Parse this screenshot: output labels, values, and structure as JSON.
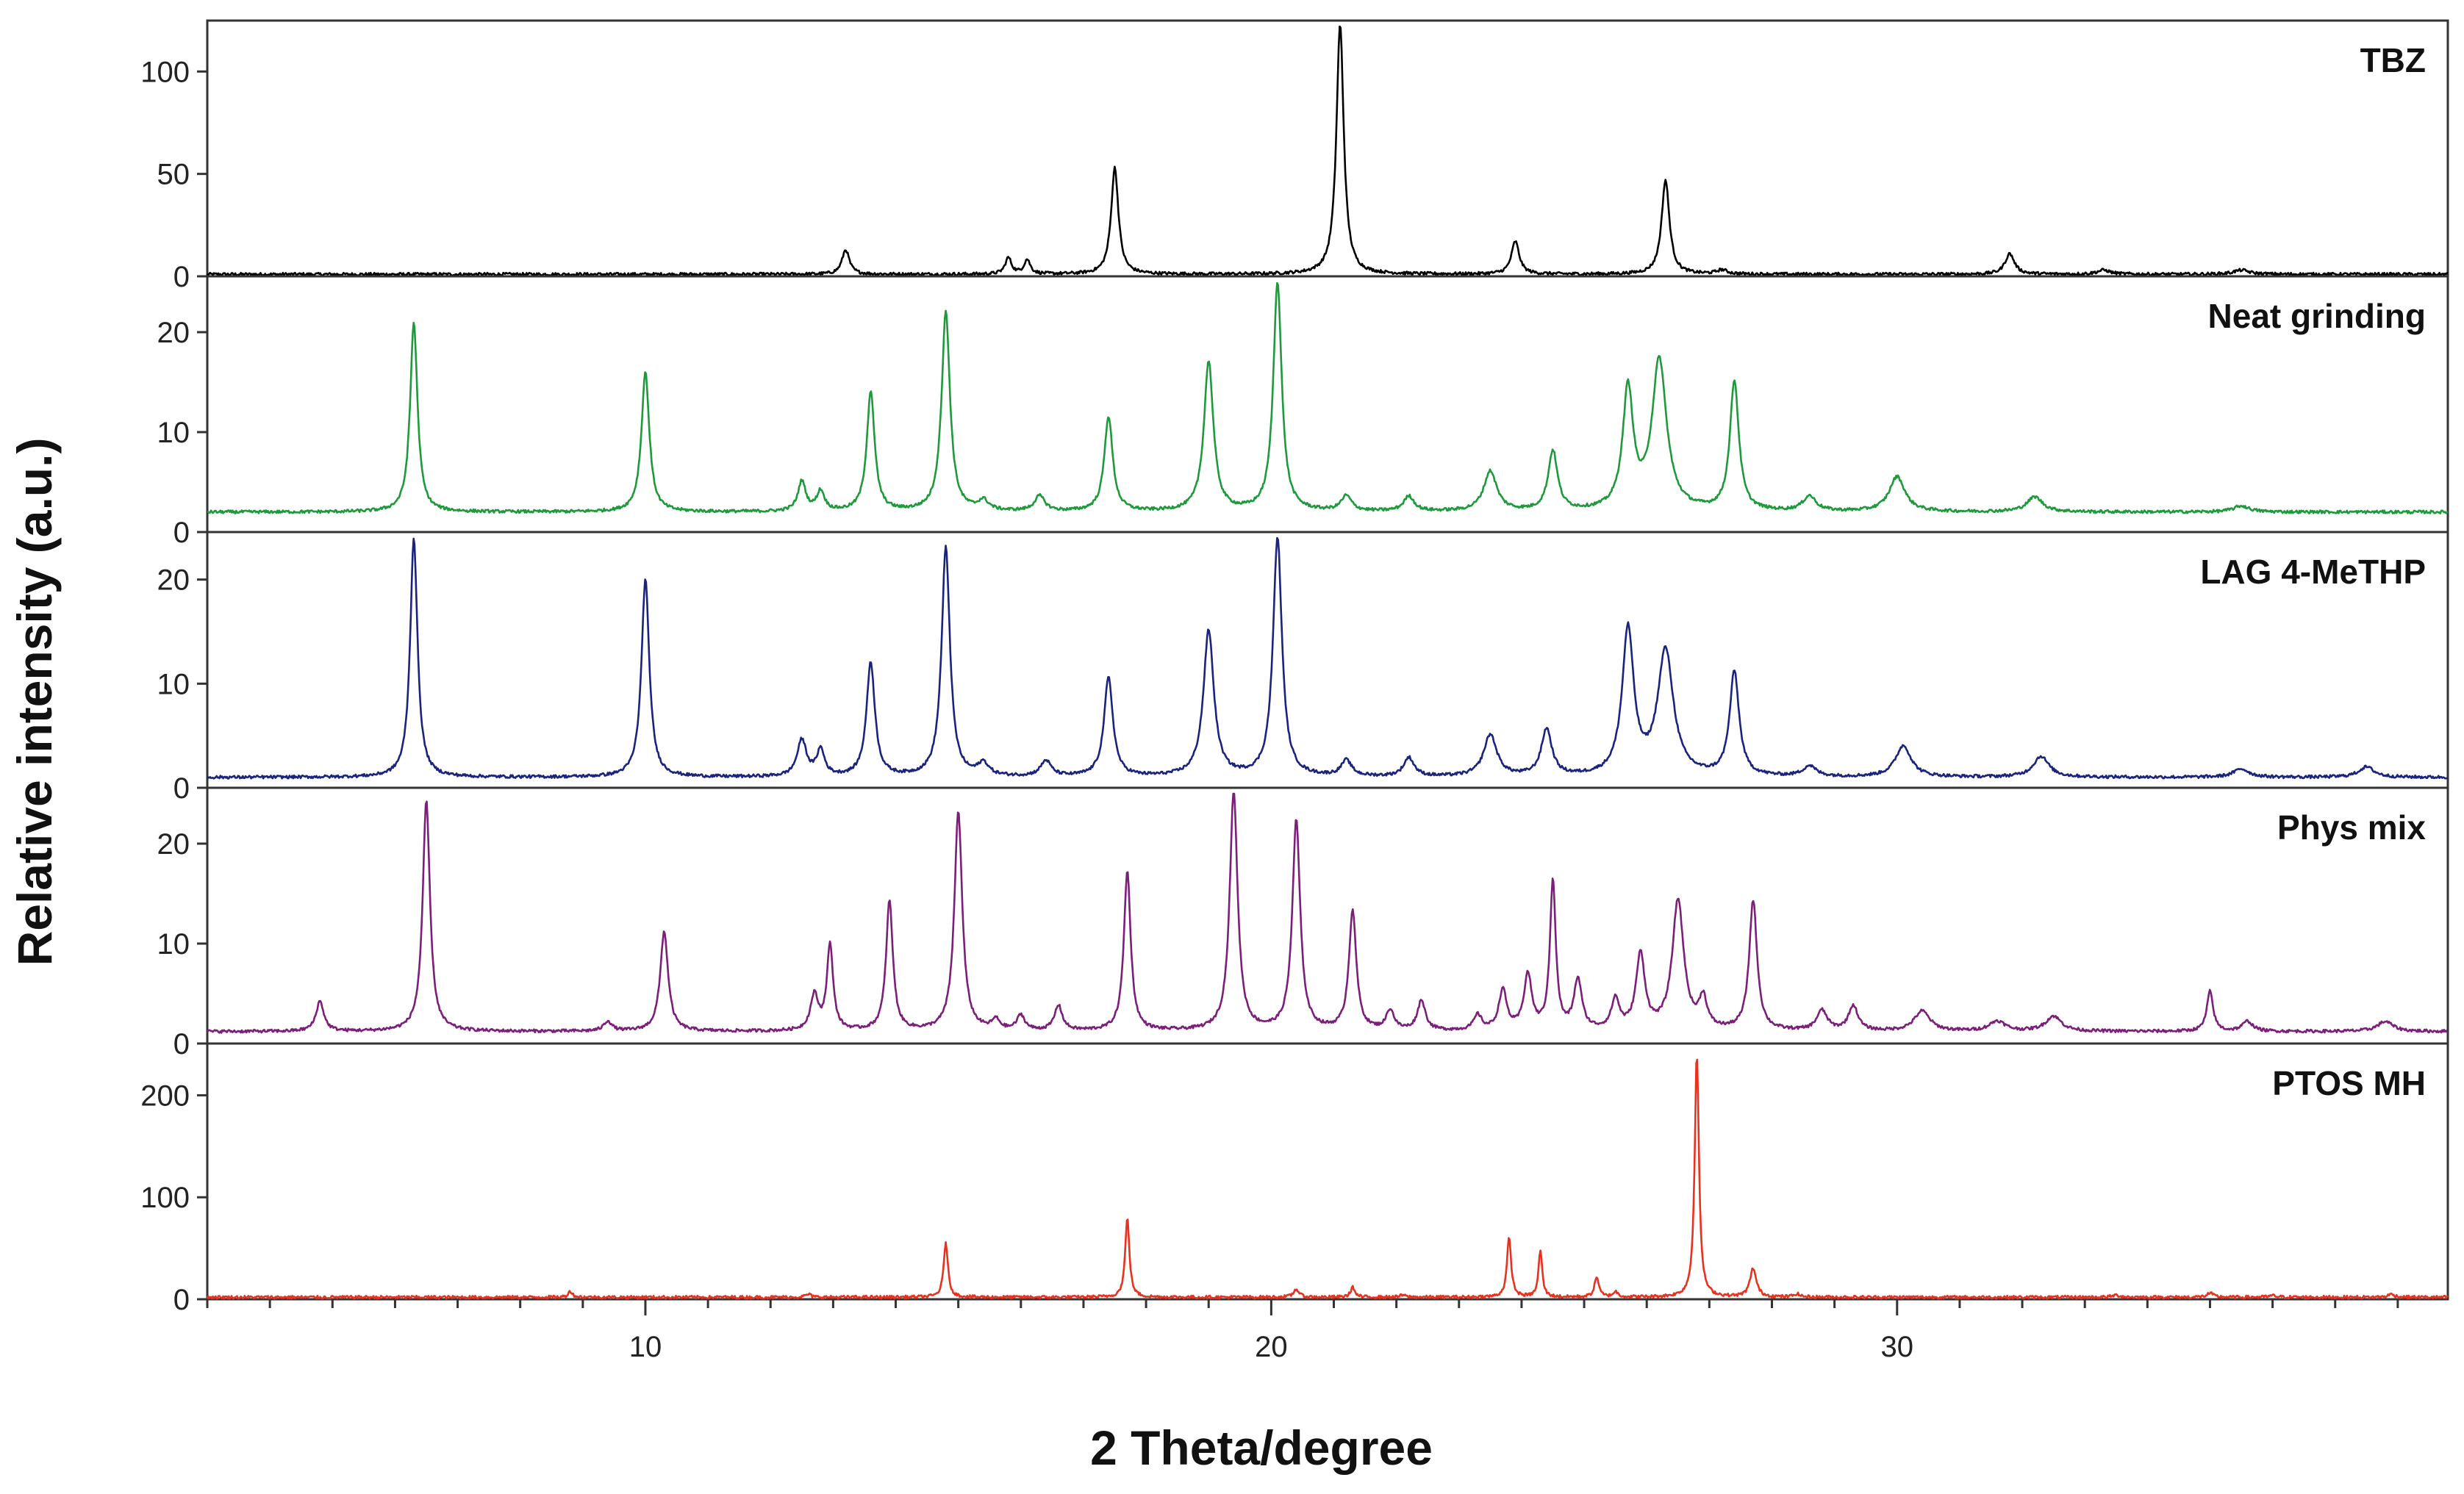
{
  "chart_data": {
    "type": "line",
    "xlabel": "2 Theta/degree",
    "ylabel": "Relative intensity (a.u.)",
    "xlim": [
      3,
      38.8
    ],
    "xticks": [
      10,
      20,
      30
    ],
    "grid": false,
    "panels": [
      {
        "name": "TBZ",
        "color": "#000000",
        "ylim": [
          0,
          122
        ],
        "yticks": [
          0,
          50,
          100
        ],
        "baseline": 1,
        "peaks": [
          [
            13.2,
            12,
            0.14
          ],
          [
            15.8,
            8,
            0.12
          ],
          [
            16.1,
            7,
            0.12
          ],
          [
            17.5,
            52,
            0.14
          ],
          [
            21.1,
            122,
            0.14
          ],
          [
            23.9,
            16,
            0.15
          ],
          [
            26.3,
            46,
            0.15
          ],
          [
            27.2,
            2,
            0.2
          ],
          [
            31.8,
            10,
            0.18
          ],
          [
            33.3,
            2,
            0.25
          ],
          [
            35.5,
            2,
            0.3
          ]
        ]
      },
      {
        "name": "Neat grinding",
        "color": "#1e9a3c",
        "ylim": [
          0,
          25
        ],
        "yticks": [
          0,
          10,
          20
        ],
        "baseline": 2,
        "peaks": [
          [
            6.3,
            19,
            0.14
          ],
          [
            10.0,
            14,
            0.15
          ],
          [
            12.5,
            3,
            0.15
          ],
          [
            12.8,
            2,
            0.15
          ],
          [
            13.6,
            12,
            0.15
          ],
          [
            14.8,
            20,
            0.16
          ],
          [
            15.4,
            1,
            0.2
          ],
          [
            16.3,
            1.5,
            0.2
          ],
          [
            17.4,
            9.5,
            0.16
          ],
          [
            19.0,
            15,
            0.18
          ],
          [
            20.1,
            23,
            0.16
          ],
          [
            21.2,
            1.5,
            0.2
          ],
          [
            22.2,
            1.5,
            0.2
          ],
          [
            23.5,
            4,
            0.25
          ],
          [
            24.5,
            6,
            0.18
          ],
          [
            25.7,
            12,
            0.2
          ],
          [
            26.2,
            15,
            0.28
          ],
          [
            27.4,
            13,
            0.17
          ],
          [
            28.6,
            1.5,
            0.25
          ],
          [
            30.0,
            3.5,
            0.3
          ],
          [
            32.2,
            1.5,
            0.3
          ],
          [
            35.5,
            0.6,
            0.3
          ]
        ]
      },
      {
        "name": "LAG 4-MeTHP",
        "color": "#1a237e",
        "ylim": [
          0,
          24
        ],
        "yticks": [
          0,
          10,
          20
        ],
        "baseline": 1,
        "peaks": [
          [
            6.3,
            23,
            0.14
          ],
          [
            10.0,
            19,
            0.15
          ],
          [
            12.5,
            3.5,
            0.18
          ],
          [
            12.8,
            2.5,
            0.15
          ],
          [
            13.6,
            11,
            0.16
          ],
          [
            14.8,
            22,
            0.16
          ],
          [
            15.4,
            1.2,
            0.2
          ],
          [
            16.4,
            1.5,
            0.2
          ],
          [
            17.4,
            9.5,
            0.17
          ],
          [
            19.0,
            14,
            0.2
          ],
          [
            20.1,
            23,
            0.17
          ],
          [
            21.2,
            1.5,
            0.2
          ],
          [
            22.2,
            1.8,
            0.2
          ],
          [
            23.5,
            4,
            0.25
          ],
          [
            24.4,
            4.5,
            0.2
          ],
          [
            25.7,
            14,
            0.22
          ],
          [
            26.3,
            12,
            0.3
          ],
          [
            27.4,
            10,
            0.18
          ],
          [
            28.6,
            1,
            0.25
          ],
          [
            30.1,
            3,
            0.3
          ],
          [
            32.3,
            2,
            0.3
          ],
          [
            35.5,
            0.8,
            0.3
          ],
          [
            37.5,
            1,
            0.3
          ]
        ]
      },
      {
        "name": "Phys mix",
        "color": "#7b1f7a",
        "ylim": [
          0,
          25
        ],
        "yticks": [
          0,
          10,
          20
        ],
        "baseline": 1.2,
        "peaks": [
          [
            4.8,
            3,
            0.15
          ],
          [
            6.5,
            23,
            0.14
          ],
          [
            9.4,
            1,
            0.15
          ],
          [
            10.3,
            10,
            0.15
          ],
          [
            12.7,
            3.5,
            0.15
          ],
          [
            12.95,
            8.5,
            0.12
          ],
          [
            13.9,
            13,
            0.13
          ],
          [
            15.0,
            22,
            0.15
          ],
          [
            15.6,
            1,
            0.15
          ],
          [
            16.0,
            1.5,
            0.15
          ],
          [
            16.6,
            2.5,
            0.15
          ],
          [
            17.7,
            16,
            0.13
          ],
          [
            19.4,
            24,
            0.15
          ],
          [
            20.4,
            21,
            0.15
          ],
          [
            21.3,
            12,
            0.14
          ],
          [
            21.9,
            2,
            0.15
          ],
          [
            22.4,
            3,
            0.15
          ],
          [
            23.3,
            1.5,
            0.15
          ],
          [
            23.7,
            4,
            0.15
          ],
          [
            24.1,
            5.5,
            0.15
          ],
          [
            24.5,
            15,
            0.11
          ],
          [
            24.9,
            5,
            0.15
          ],
          [
            25.5,
            3,
            0.15
          ],
          [
            25.9,
            7.5,
            0.17
          ],
          [
            26.5,
            13,
            0.22
          ],
          [
            26.9,
            3,
            0.15
          ],
          [
            27.7,
            13,
            0.15
          ],
          [
            28.8,
            2,
            0.2
          ],
          [
            29.3,
            2.5,
            0.18
          ],
          [
            30.4,
            2,
            0.3
          ],
          [
            31.6,
            1,
            0.3
          ],
          [
            32.5,
            1.5,
            0.3
          ],
          [
            35.0,
            4,
            0.12
          ],
          [
            35.6,
            1,
            0.2
          ],
          [
            37.8,
            1,
            0.3
          ]
        ]
      },
      {
        "name": "PTOS MH",
        "color": "#e8321e",
        "ylim": [
          0,
          245
        ],
        "yticks": [
          0,
          100,
          200
        ],
        "baseline": 2,
        "peaks": [
          [
            8.8,
            6,
            0.08
          ],
          [
            12.6,
            3,
            0.1
          ],
          [
            14.8,
            54,
            0.08
          ],
          [
            17.7,
            78,
            0.08
          ],
          [
            20.4,
            8,
            0.1
          ],
          [
            21.3,
            10,
            0.08
          ],
          [
            22.1,
            2,
            0.1
          ],
          [
            23.8,
            58,
            0.08
          ],
          [
            24.3,
            46,
            0.07
          ],
          [
            25.2,
            20,
            0.08
          ],
          [
            25.5,
            5,
            0.1
          ],
          [
            26.8,
            240,
            0.08
          ],
          [
            27.7,
            28,
            0.12
          ],
          [
            28.4,
            3,
            0.12
          ],
          [
            33.5,
            2,
            0.15
          ],
          [
            35.0,
            4,
            0.12
          ],
          [
            36.0,
            1.5,
            0.15
          ],
          [
            37.9,
            3,
            0.12
          ]
        ]
      }
    ]
  }
}
